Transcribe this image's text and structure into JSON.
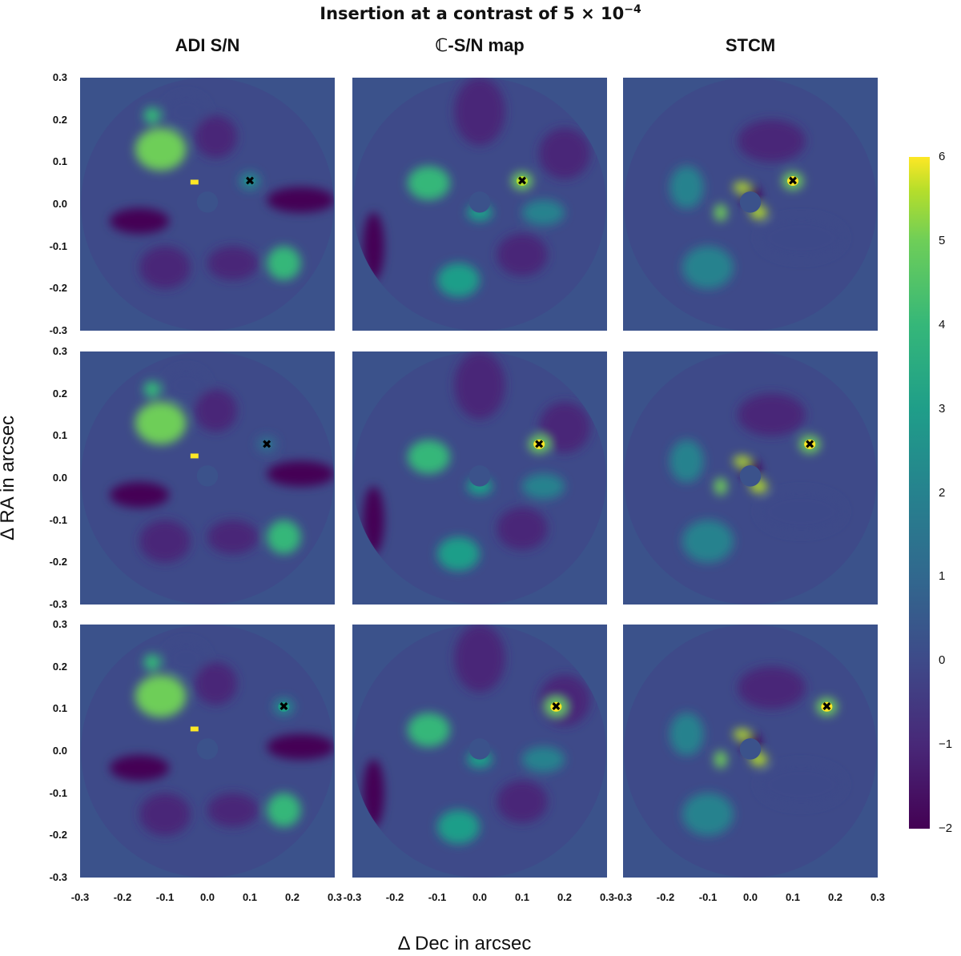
{
  "figure_title": "Insertion at a contrast of 5 × 10",
  "figure_title_exponent": "−4",
  "column_titles": [
    "ADI S/N",
    "ℂ-S/N map",
    "STCM"
  ],
  "ylabel": "Δ RA in arcsec",
  "xlabel": "Δ Dec in arcsec",
  "y_ticks": [
    "0.3",
    "0.2",
    "0.1",
    "0.0",
    "-0.1",
    "-0.2",
    "-0.3"
  ],
  "x_ticks": [
    "-0.3",
    "-0.2",
    "-0.1",
    "0.0",
    "0.1",
    "0.2",
    "0.3"
  ],
  "colorbar": {
    "ticks": [
      "6",
      "5",
      "4",
      "3",
      "2",
      "1",
      "0",
      "−1",
      "−2"
    ],
    "range": [
      -2,
      6
    ],
    "colormap": "viridis"
  },
  "colors": {
    "background_value_color": "#3b528b",
    "marker_color": "#000000"
  },
  "chart_data": {
    "type": "heatmap",
    "grid": {
      "rows": 3,
      "cols": 3
    },
    "xlim": [
      -0.3,
      0.3
    ],
    "ylim": [
      -0.3,
      0.3
    ],
    "colorbar_range": [
      -2,
      6
    ],
    "rows": [
      {
        "inserted_companion": {
          "x": 0.1,
          "y": 0.055
        },
        "panels": [
          {
            "method": "ADI S/N",
            "peak_value": 1.5
          },
          {
            "method": "ℂ-S/N map",
            "peak_value": 5.5
          },
          {
            "method": "STCM",
            "peak_value": 6.0
          }
        ]
      },
      {
        "inserted_companion": {
          "x": 0.14,
          "y": 0.08
        },
        "panels": [
          {
            "method": "ADI S/N",
            "peak_value": 0.5
          },
          {
            "method": "ℂ-S/N map",
            "peak_value": 6.0
          },
          {
            "method": "STCM",
            "peak_value": 6.0
          }
        ]
      },
      {
        "inserted_companion": {
          "x": 0.18,
          "y": 0.105
        },
        "panels": [
          {
            "method": "ADI S/N",
            "peak_value": 2.5
          },
          {
            "method": "ℂ-S/N map",
            "peak_value": 6.0
          },
          {
            "method": "STCM",
            "peak_value": 6.0
          }
        ]
      }
    ]
  }
}
